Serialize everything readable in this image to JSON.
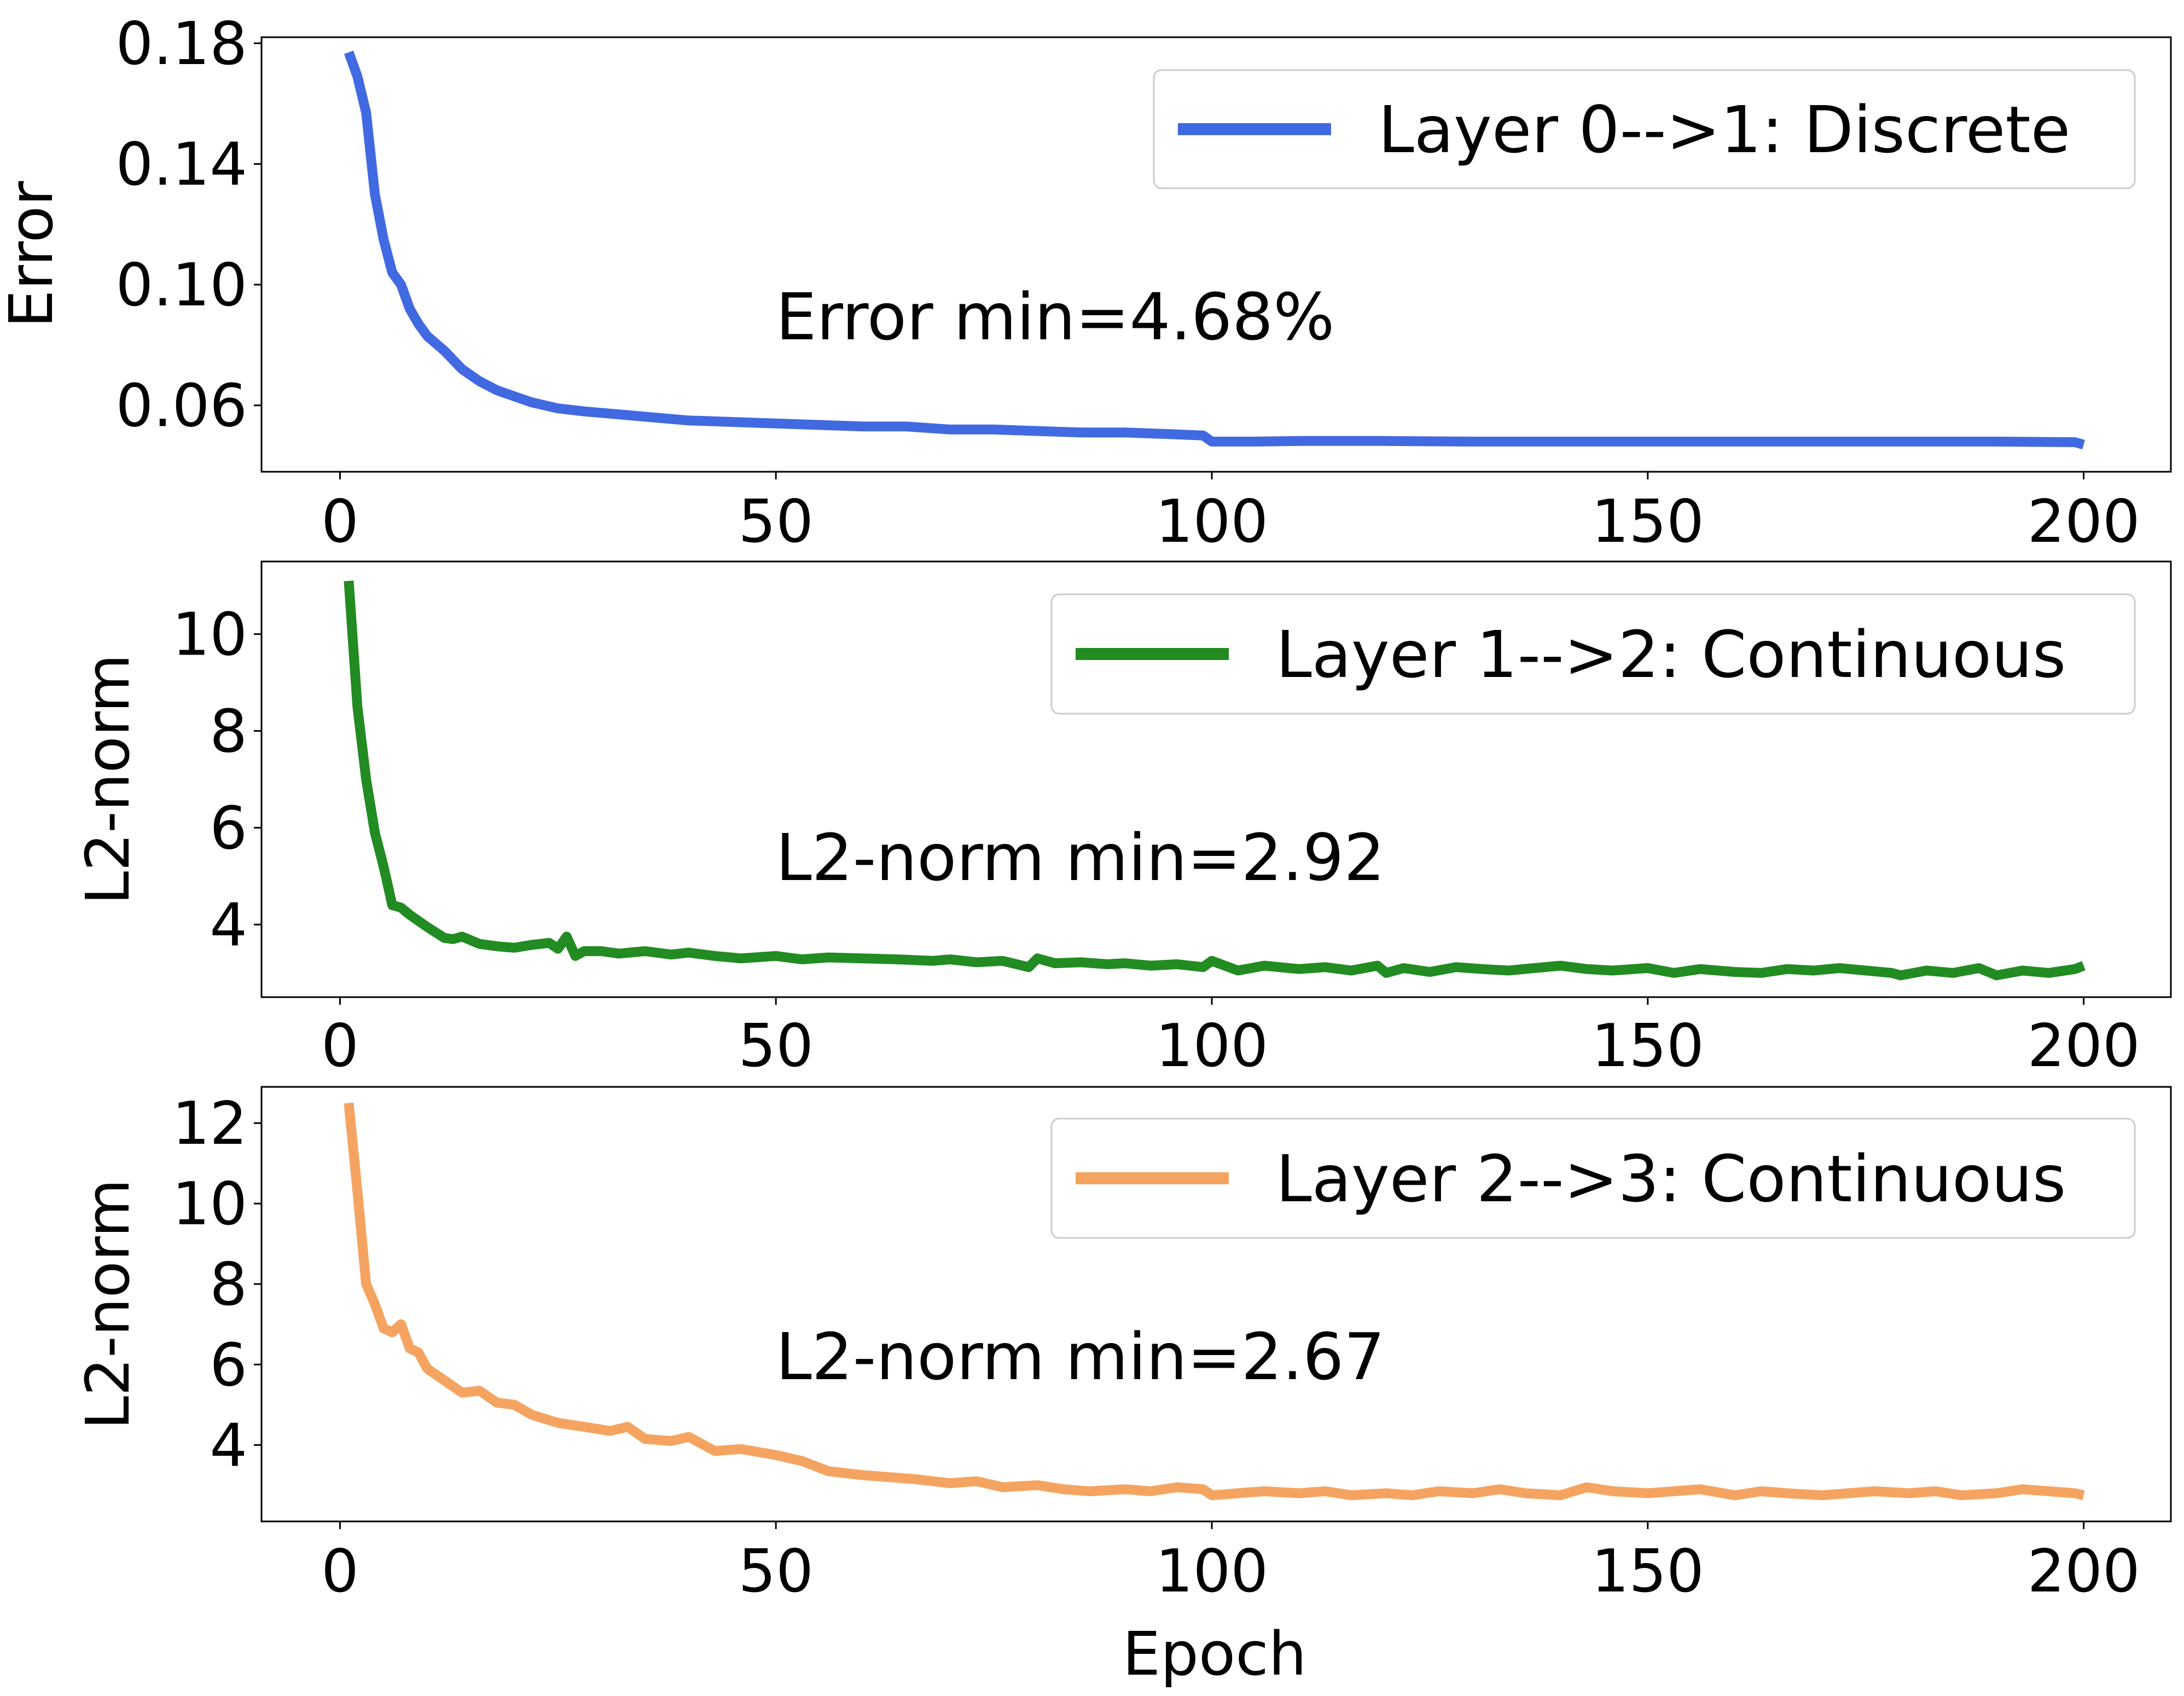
{
  "figure": {
    "xlabel": "Epoch"
  },
  "chart_data": [
    {
      "type": "line",
      "title": "",
      "xlabel": "",
      "ylabel": "Error",
      "xlim": [
        -9,
        210
      ],
      "ylim": [
        0.038,
        0.182
      ],
      "xticks": [
        0,
        50,
        100,
        150,
        200
      ],
      "yticks": [
        0.06,
        0.1,
        0.14,
        0.18
      ],
      "ytick_labels": [
        "0.06",
        "0.10",
        "0.14",
        "0.18"
      ],
      "legend_position": "top-right",
      "grid": false,
      "annotation": "Error min=4.68%",
      "series": [
        {
          "name": "Layer 0-->1: Discrete",
          "color": "#4169E1",
          "x": [
            1,
            2,
            3,
            4,
            5,
            6,
            7,
            8,
            9,
            10,
            12,
            14,
            16,
            18,
            20,
            22,
            25,
            28,
            32,
            36,
            40,
            45,
            50,
            55,
            60,
            65,
            70,
            75,
            80,
            85,
            90,
            95,
            99,
            100,
            105,
            110,
            120,
            130,
            140,
            150,
            160,
            170,
            180,
            190,
            199,
            200
          ],
          "y": [
            0.177,
            0.169,
            0.157,
            0.13,
            0.115,
            0.104,
            0.1,
            0.092,
            0.087,
            0.083,
            0.078,
            0.072,
            0.068,
            0.065,
            0.063,
            0.061,
            0.059,
            0.058,
            0.057,
            0.056,
            0.055,
            0.0545,
            0.054,
            0.0535,
            0.053,
            0.053,
            0.052,
            0.052,
            0.0515,
            0.051,
            0.051,
            0.0505,
            0.05,
            0.048,
            0.048,
            0.0482,
            0.0482,
            0.048,
            0.048,
            0.048,
            0.048,
            0.048,
            0.048,
            0.048,
            0.0478,
            0.047
          ]
        }
      ]
    },
    {
      "type": "line",
      "title": "",
      "xlabel": "",
      "ylabel": "L2-norm",
      "xlim": [
        -9,
        210
      ],
      "ylim": [
        2.5,
        11.5
      ],
      "xticks": [
        0,
        50,
        100,
        150,
        200
      ],
      "yticks": [
        4,
        6,
        8,
        10
      ],
      "ytick_labels": [
        "4",
        "6",
        "8",
        "10"
      ],
      "legend_position": "top-right",
      "grid": false,
      "annotation": "L2-norm min=2.92",
      "series": [
        {
          "name": "Layer 1-->2: Continuous",
          "color": "#228B22",
          "x": [
            1,
            2,
            3,
            4,
            5,
            6,
            7,
            8,
            10,
            12,
            13,
            14,
            16,
            18,
            20,
            22,
            24,
            25,
            26,
            27,
            28,
            30,
            32,
            35,
            38,
            40,
            43,
            46,
            50,
            53,
            56,
            60,
            64,
            68,
            70,
            73,
            76,
            79,
            80,
            82,
            85,
            88,
            90,
            93,
            96,
            99,
            100,
            103,
            106,
            110,
            113,
            116,
            119,
            120,
            122,
            125,
            128,
            131,
            134,
            137,
            140,
            143,
            146,
            150,
            153,
            156,
            160,
            163,
            166,
            169,
            172,
            175,
            178,
            179,
            182,
            185,
            188,
            190,
            193,
            196,
            199,
            200
          ],
          "y": [
            11.1,
            8.5,
            7.0,
            5.9,
            5.2,
            4.4,
            4.35,
            4.2,
            3.95,
            3.72,
            3.7,
            3.75,
            3.6,
            3.55,
            3.52,
            3.58,
            3.62,
            3.5,
            3.75,
            3.35,
            3.45,
            3.45,
            3.4,
            3.45,
            3.38,
            3.42,
            3.35,
            3.3,
            3.35,
            3.28,
            3.32,
            3.3,
            3.28,
            3.25,
            3.28,
            3.22,
            3.25,
            3.12,
            3.3,
            3.2,
            3.22,
            3.18,
            3.2,
            3.15,
            3.18,
            3.12,
            3.25,
            3.05,
            3.15,
            3.08,
            3.12,
            3.05,
            3.15,
            3.0,
            3.1,
            3.02,
            3.12,
            3.08,
            3.05,
            3.1,
            3.15,
            3.08,
            3.05,
            3.1,
            3.0,
            3.08,
            3.02,
            3.0,
            3.08,
            3.05,
            3.1,
            3.05,
            3.0,
            2.95,
            3.05,
            3.0,
            3.1,
            2.95,
            3.05,
            3.0,
            3.08,
            3.15
          ]
        }
      ]
    },
    {
      "type": "line",
      "title": "",
      "xlabel": "Epoch",
      "ylabel": "L2-norm",
      "xlim": [
        -9,
        210
      ],
      "ylim": [
        2.1,
        12.9
      ],
      "xticks": [
        0,
        50,
        100,
        150,
        200
      ],
      "yticks": [
        4,
        6,
        8,
        10,
        12
      ],
      "ytick_labels": [
        "4",
        "6",
        "8",
        "10",
        "12"
      ],
      "legend_position": "top-right",
      "grid": false,
      "annotation": "L2-norm min=2.67",
      "series": [
        {
          "name": "Layer 2-->3: Continuous",
          "color": "#F4A460",
          "x": [
            1,
            2,
            3,
            4,
            5,
            6,
            7,
            8,
            9,
            10,
            12,
            14,
            16,
            18,
            20,
            22,
            25,
            28,
            31,
            33,
            35,
            38,
            40,
            43,
            46,
            50,
            53,
            56,
            60,
            63,
            66,
            70,
            73,
            76,
            80,
            83,
            86,
            90,
            93,
            96,
            99,
            100,
            103,
            106,
            110,
            113,
            116,
            120,
            123,
            126,
            130,
            133,
            136,
            140,
            143,
            146,
            150,
            153,
            156,
            160,
            163,
            166,
            170,
            173,
            176,
            180,
            183,
            186,
            190,
            193,
            196,
            199,
            200
          ],
          "y": [
            12.5,
            10.3,
            8.0,
            7.5,
            6.9,
            6.8,
            7.0,
            6.4,
            6.3,
            5.9,
            5.6,
            5.3,
            5.35,
            5.05,
            5.0,
            4.75,
            4.55,
            4.45,
            4.35,
            4.45,
            4.15,
            4.1,
            4.2,
            3.85,
            3.9,
            3.75,
            3.6,
            3.35,
            3.25,
            3.2,
            3.15,
            3.05,
            3.1,
            2.95,
            3.0,
            2.9,
            2.85,
            2.9,
            2.85,
            2.95,
            2.9,
            2.75,
            2.8,
            2.85,
            2.8,
            2.85,
            2.75,
            2.8,
            2.75,
            2.85,
            2.8,
            2.9,
            2.8,
            2.75,
            2.95,
            2.85,
            2.8,
            2.85,
            2.9,
            2.75,
            2.85,
            2.8,
            2.75,
            2.8,
            2.85,
            2.8,
            2.85,
            2.75,
            2.8,
            2.9,
            2.85,
            2.8,
            2.75
          ]
        }
      ]
    }
  ]
}
